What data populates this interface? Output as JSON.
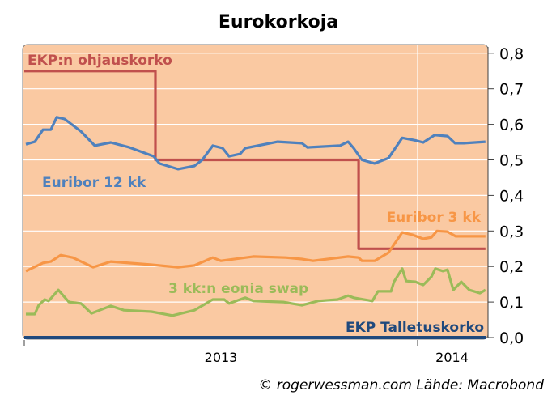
{
  "chart_data": {
    "type": "line",
    "title": "Eurokorkoja",
    "source": "© rogerwessman.com Lähde: Macrobond",
    "x_unit": "months since January 2013",
    "xlim": [
      0,
      14.1
    ],
    "ylim": [
      0,
      0.8
    ],
    "y_ticks": [
      "0,0",
      "0,1",
      "0,2",
      "0,3",
      "0,4",
      "0,5",
      "0,6",
      "0,7",
      "0,8"
    ],
    "y_tick_values": [
      0,
      0.1,
      0.2,
      0.3,
      0.4,
      0.5,
      0.6,
      0.7,
      0.8
    ],
    "x_ticks": [
      {
        "label": "2013",
        "start": 0,
        "end": 12
      },
      {
        "label": "2014",
        "start": 12,
        "end": 14.1
      }
    ],
    "grid": true,
    "colors": {
      "background": "#FAC9A2",
      "grid": "#FFFFFF"
    },
    "series": [
      {
        "name": "EKP:n ohjauskorko",
        "color": "#C0504D",
        "x": [
          0,
          4.0,
          4.0,
          10.2,
          10.2,
          14.07
        ],
        "y": [
          0.75,
          0.75,
          0.5,
          0.5,
          0.25,
          0.25
        ]
      },
      {
        "name": "Euribor 12 kk",
        "color": "#4F81BD",
        "x": [
          0.05,
          0.32,
          0.57,
          0.81,
          0.99,
          1.23,
          1.73,
          2.15,
          2.64,
          3.21,
          3.95,
          4.12,
          4.69,
          5.19,
          5.43,
          5.75,
          6.05,
          6.25,
          6.59,
          6.74,
          7.73,
          8.47,
          8.64,
          9.63,
          9.88,
          10.05,
          10.3,
          10.69,
          11.11,
          11.53,
          11.93,
          12.17,
          12.52,
          12.91,
          13.14,
          13.41,
          14.07
        ],
        "y": [
          0.544,
          0.551,
          0.585,
          0.585,
          0.62,
          0.615,
          0.58,
          0.54,
          0.549,
          0.535,
          0.51,
          0.49,
          0.474,
          0.483,
          0.5,
          0.54,
          0.533,
          0.51,
          0.517,
          0.533,
          0.551,
          0.547,
          0.535,
          0.54,
          0.551,
          0.533,
          0.5,
          0.49,
          0.505,
          0.562,
          0.555,
          0.549,
          0.57,
          0.567,
          0.547,
          0.547,
          0.551
        ]
      },
      {
        "name": "Euribor 3 kk",
        "color": "#F79646",
        "x": [
          0.05,
          0.57,
          0.81,
          1.11,
          1.48,
          2.1,
          2.64,
          3.88,
          4.69,
          5.19,
          5.75,
          6.0,
          6.99,
          7.98,
          8.47,
          8.81,
          9.88,
          10.2,
          10.3,
          10.69,
          11.11,
          11.53,
          11.85,
          12.17,
          12.42,
          12.59,
          12.91,
          13.16,
          14.07
        ],
        "y": [
          0.187,
          0.21,
          0.214,
          0.232,
          0.225,
          0.198,
          0.214,
          0.205,
          0.198,
          0.203,
          0.225,
          0.216,
          0.228,
          0.225,
          0.221,
          0.216,
          0.228,
          0.225,
          0.216,
          0.216,
          0.239,
          0.296,
          0.289,
          0.278,
          0.282,
          0.3,
          0.298,
          0.285,
          0.285
        ]
      },
      {
        "name": "3 kk:n eonia swap",
        "color": "#9BBB59",
        "x": [
          0.05,
          0.32,
          0.44,
          0.62,
          0.74,
          1.04,
          1.36,
          1.73,
          2.05,
          2.64,
          3.04,
          3.88,
          4.52,
          5.19,
          5.75,
          6.1,
          6.25,
          6.74,
          6.99,
          7.9,
          8.47,
          8.96,
          9.56,
          9.88,
          10.05,
          10.62,
          10.79,
          11.19,
          11.28,
          11.53,
          11.65,
          11.93,
          12.17,
          12.42,
          12.54,
          12.77,
          12.91,
          13.09,
          13.33,
          13.58,
          13.9,
          14.07
        ],
        "y": [
          0.066,
          0.066,
          0.091,
          0.107,
          0.103,
          0.134,
          0.1,
          0.096,
          0.068,
          0.089,
          0.077,
          0.073,
          0.062,
          0.077,
          0.107,
          0.107,
          0.096,
          0.112,
          0.103,
          0.1,
          0.091,
          0.103,
          0.107,
          0.118,
          0.112,
          0.103,
          0.13,
          0.13,
          0.157,
          0.194,
          0.159,
          0.157,
          0.148,
          0.171,
          0.194,
          0.187,
          0.191,
          0.134,
          0.157,
          0.134,
          0.125,
          0.134
        ]
      },
      {
        "name": "EKP Talletuskorko",
        "color": "#1F497D",
        "x": [
          0,
          14.1
        ],
        "y": [
          0,
          0
        ]
      }
    ]
  }
}
